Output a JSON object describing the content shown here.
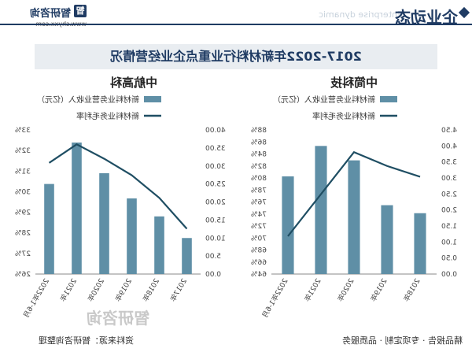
{
  "header": {
    "title": "企业动态",
    "subtitle_en": "Enterprise dynamic",
    "logo_name": "智研咨询",
    "logo_mark": "智",
    "logo_url": "www.chyxx.com"
  },
  "banner": {
    "title": "2017-2022年新材料行业重点企业经营情况"
  },
  "footer": {
    "source": "资料来源：智研咨询整理",
    "tagline": "精品报告 · 专项定制 · 品质服务"
  },
  "watermark": "智研咨询",
  "colors": {
    "bar": "#5f8fa6",
    "line": "#1f4e63",
    "navy": "#1f3b63"
  },
  "chart_data": [
    {
      "type": "bar",
      "title": "中航高科",
      "categories": [
        "2017年",
        "2018年",
        "2019年",
        "2020年",
        "2021年",
        "2022年1-6月"
      ],
      "series": [
        {
          "name": "新材料业务营业收入（亿元）",
          "type": "bar",
          "axis": "left",
          "values": [
            10.0,
            16.0,
            21.0,
            28.0,
            36.5,
            25.0
          ]
        },
        {
          "name": "新材料业务毛利率",
          "type": "line",
          "axis": "right",
          "values": [
            28.2,
            29.7,
            30.8,
            31.6,
            32.3,
            31.4
          ]
        }
      ],
      "left_axis": {
        "ylim": [
          0,
          40
        ],
        "ticks": [
          "0.00",
          "5.00",
          "10.00",
          "15.00",
          "20.00",
          "25.00",
          "30.00",
          "35.00",
          "40.00"
        ]
      },
      "right_axis": {
        "ylim": [
          26,
          33
        ],
        "ticks": [
          "26%",
          "27%",
          "28%",
          "29%",
          "30%",
          "31%",
          "32%",
          "33%"
        ]
      },
      "legend_position": "top"
    },
    {
      "type": "bar",
      "title": "中简科技",
      "categories": [
        "2018年",
        "2019年",
        "2020年",
        "2021年",
        "2022年1-6月"
      ],
      "series": [
        {
          "name": "新材料业务营业收入（亿元）",
          "type": "bar",
          "axis": "left",
          "values": [
            1.9,
            2.15,
            3.55,
            4.0,
            3.05
          ]
        },
        {
          "name": "新材料业务毛利率",
          "type": "line",
          "axis": "right",
          "values": [
            80.2,
            82.0,
            84.3,
            77.3,
            70.3
          ]
        }
      ],
      "left_axis": {
        "ylim": [
          0,
          4.5
        ],
        "ticks": [
          "0.00",
          "0.50",
          "1.00",
          "1.50",
          "2.00",
          "2.50",
          "3.00",
          "3.50",
          "4.00",
          "4.50"
        ]
      },
      "right_axis": {
        "ylim": [
          64,
          88
        ],
        "ticks": [
          "64%",
          "66%",
          "68%",
          "70%",
          "72%",
          "74%",
          "76%",
          "78%",
          "80%",
          "82%",
          "84%",
          "86%",
          "88%"
        ]
      },
      "legend_position": "top"
    }
  ]
}
